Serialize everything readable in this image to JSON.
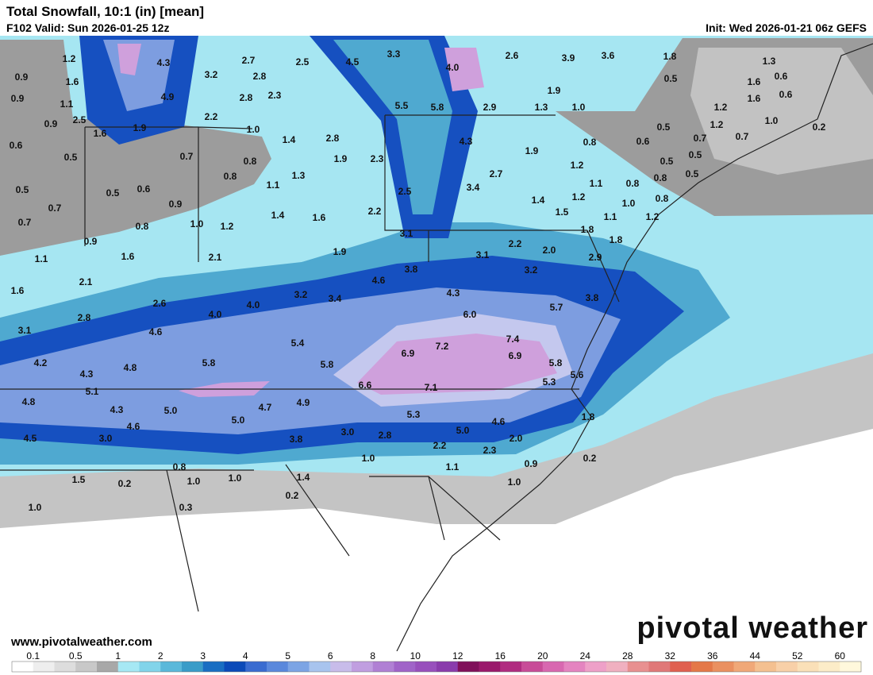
{
  "header": {
    "title": "Total Snowfall, 10:1 (in) [mean]",
    "valid": "F102 Valid: Sun 2026-01-25 12z",
    "init": "Init: Wed 2026-01-21 06z GEFS"
  },
  "map_labels": [
    "1.2",
    "4.3",
    "2.7",
    "2.5",
    "4.5",
    "3.3",
    "4.0",
    "2.6",
    "3.9",
    "3.6",
    "1.8",
    "1.3",
    "0.9",
    "1.6",
    "3.2",
    "2.8",
    "0.5",
    "1.6",
    "0.6",
    "0.9",
    "1.1",
    "4.9",
    "2.8",
    "2.3",
    "1.9",
    "1.6",
    "0.6",
    "5.5",
    "5.8",
    "2.9",
    "1.3",
    "1.0",
    "1.2",
    "0.9",
    "2.5",
    "2.2",
    "1.9",
    "1.6",
    "1.0",
    "1.4",
    "0.5",
    "1.2",
    "1.0",
    "0.2",
    "0.6",
    "2.8",
    "4.3",
    "0.8",
    "0.6",
    "0.7",
    "0.7",
    "0.5",
    "0.7",
    "0.8",
    "1.9",
    "2.3",
    "1.9",
    "0.5",
    "0.5",
    "1.2",
    "0.5",
    "0.8",
    "1.3",
    "2.7",
    "0.8",
    "0.5",
    "0.5",
    "0.6",
    "1.1",
    "2.5",
    "3.4",
    "1.1",
    "0.8",
    "0.8",
    "0.7",
    "0.9",
    "1.4",
    "1.6",
    "2.2",
    "1.4",
    "1.2",
    "1.5",
    "1.0",
    "1.1",
    "1.2",
    "0.7",
    "0.8",
    "1.0",
    "1.2",
    "3.1",
    "1.8",
    "1.8",
    "0.9",
    "2.2",
    "2.0",
    "1.9",
    "3.1",
    "2.9",
    "1.1",
    "1.6",
    "2.1",
    "3.8",
    "3.2",
    "2.1",
    "4.6",
    "1.6",
    "4.3",
    "3.2",
    "3.4",
    "3.8",
    "2.6",
    "4.0",
    "5.7",
    "2.8",
    "4.0",
    "6.0",
    "3.1",
    "4.6",
    "7.4",
    "5.4",
    "7.2",
    "6.9",
    "6.9",
    "4.2",
    "4.8",
    "5.8",
    "5.8",
    "5.8",
    "5.6",
    "4.3",
    "5.3",
    "6.6",
    "7.1",
    "5.1",
    "4.8",
    "4.9",
    "4.7",
    "4.3",
    "5.0",
    "5.3",
    "1.8",
    "5.0",
    "4.6",
    "4.6",
    "3.0",
    "5.0",
    "2.8",
    "4.5",
    "3.0",
    "3.8",
    "2.0",
    "2.2",
    "2.3",
    "1.0",
    "0.2",
    "0.9",
    "0.8",
    "1.1",
    "1.5",
    "0.2",
    "1.0",
    "1.0",
    "1.4",
    "1.0",
    "0.2",
    "1.0",
    "0.3"
  ],
  "colorbar": {
    "labels": [
      0.1,
      0.5,
      1,
      2,
      3,
      4,
      5,
      6,
      8,
      10,
      12,
      16,
      20,
      24,
      28,
      32,
      36,
      44,
      52,
      60
    ],
    "colors": [
      "#ffffff",
      "#eeeeee",
      "#dddddd",
      "#c8c8c8",
      "#a8a8a8",
      "#a6e8f4",
      "#82d4ea",
      "#5ab8da",
      "#3a9cc8",
      "#1a6ec2",
      "#0c4ab8",
      "#3a6cd0",
      "#5a88dc",
      "#7ca4e4",
      "#a8c4ee",
      "#c8bcea",
      "#c09ee0",
      "#b080d4",
      "#a064c8",
      "#9850bc",
      "#8a3cac",
      "#80105a",
      "#9a1a6c",
      "#b02c80",
      "#c84c98",
      "#d868b0",
      "#e484c0",
      "#eea0c8",
      "#f0b0c0",
      "#e89090",
      "#e07878",
      "#e06050",
      "#e47848",
      "#ea9060",
      "#f0a878",
      "#f4c090",
      "#f8d0a8",
      "#fae0b8",
      "#fcecc8",
      "#fff8dc"
    ]
  },
  "footer": {
    "url": "www.pivotalweather.com",
    "brand": "pivotal weather"
  }
}
